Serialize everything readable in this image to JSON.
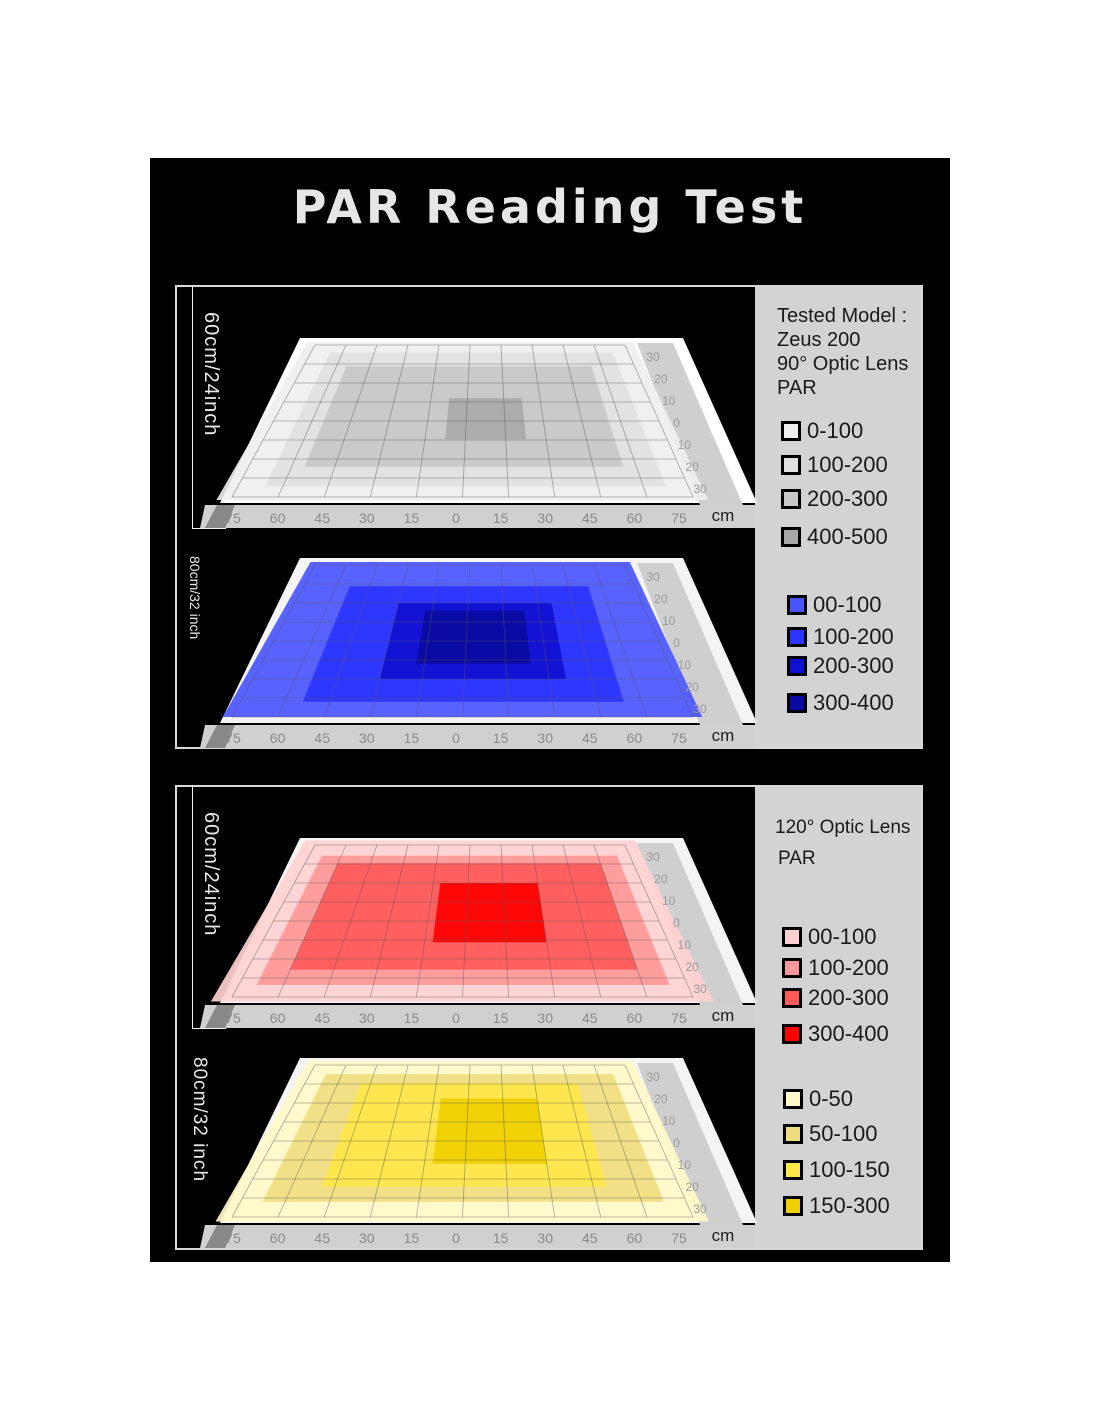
{
  "title": "PAR Reading Test",
  "top_panel": {
    "info": [
      "Tested Model :",
      "Zeus 200",
      "90°   Optic Lens",
      "PAR"
    ],
    "plates": [
      {
        "height_label": "60cm/24inch",
        "legend": [
          {
            "label": "0-100",
            "color": "#eeeeee"
          },
          {
            "label": "100-200",
            "color": "#e0e0e0"
          },
          {
            "label": "200-300",
            "color": "#c8c8c8"
          },
          {
            "label": "400-500",
            "color": "#a8a8a8"
          }
        ]
      },
      {
        "height_label": "80cm/32 inch",
        "legend": [
          {
            "label": "00-100",
            "color": "#4a55ff"
          },
          {
            "label": "100-200",
            "color": "#2a33ff"
          },
          {
            "label": "200-300",
            "color": "#1010d0"
          },
          {
            "label": "300-400",
            "color": "#0a0aa0"
          }
        ]
      }
    ]
  },
  "bottom_panel": {
    "info": [
      "120°  Optic Lens",
      "PAR"
    ],
    "plates": [
      {
        "height_label": "60cm/24inch",
        "legend": [
          {
            "label": "00-100",
            "color": "#ffd0d0"
          },
          {
            "label": "100-200",
            "color": "#ff9898"
          },
          {
            "label": "200-300",
            "color": "#ff5a5a"
          },
          {
            "label": "300-400",
            "color": "#ff0000"
          }
        ]
      },
      {
        "height_label": "80cm/32 inch",
        "legend": [
          {
            "label": "0-50",
            "color": "#fff8c8"
          },
          {
            "label": "50-100",
            "color": "#f0dd80"
          },
          {
            "label": "100-150",
            "color": "#ffe74a"
          },
          {
            "label": "150-300",
            "color": "#f0d000"
          }
        ]
      }
    ]
  },
  "chart_data": {
    "type": "heatmap",
    "x_ticks": [
      "75",
      "60",
      "45",
      "30",
      "15",
      "0",
      "15",
      "30",
      "45",
      "60",
      "75"
    ],
    "y_ticks": [
      "30",
      "20",
      "10",
      "0",
      "10",
      "20",
      "30"
    ],
    "unit": "cm",
    "legend_placement": "right"
  }
}
